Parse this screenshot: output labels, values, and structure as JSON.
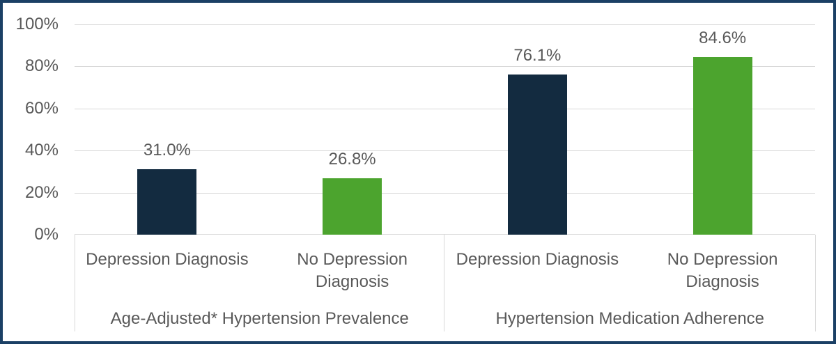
{
  "chart_data": {
    "type": "bar",
    "title": "",
    "legend": "none",
    "grid": true,
    "y_axis": {
      "min": 0,
      "max": 100,
      "tick_step": 20,
      "unit": "%",
      "ticks_top_to_bottom": [
        "100%",
        "80%",
        "60%",
        "40%",
        "20%",
        "0%"
      ]
    },
    "groups": [
      {
        "label": "Age-Adjusted* Hypertension Prevalence",
        "bars": [
          {
            "category": "Depression Diagnosis",
            "value": 31.0,
            "value_label": "31.0%",
            "color": "#132B40"
          },
          {
            "category": "No Depression Diagnosis",
            "value": 26.8,
            "value_label": "26.8%",
            "color": "#4CA42E"
          }
        ]
      },
      {
        "label": "Hypertension Medication Adherence",
        "bars": [
          {
            "category": "Depression Diagnosis",
            "value": 76.1,
            "value_label": "76.1%",
            "color": "#132B40"
          },
          {
            "category": "No Depression Diagnosis",
            "value": 84.6,
            "value_label": "84.6%",
            "color": "#4CA42E"
          }
        ]
      }
    ],
    "colors": {
      "bar_depression_navy": "#132B40",
      "bar_no_depression_green": "#4CA42E",
      "gridline": "#D9D9D9",
      "axis_text": "#595959",
      "frame_border": "#1B4065"
    }
  }
}
